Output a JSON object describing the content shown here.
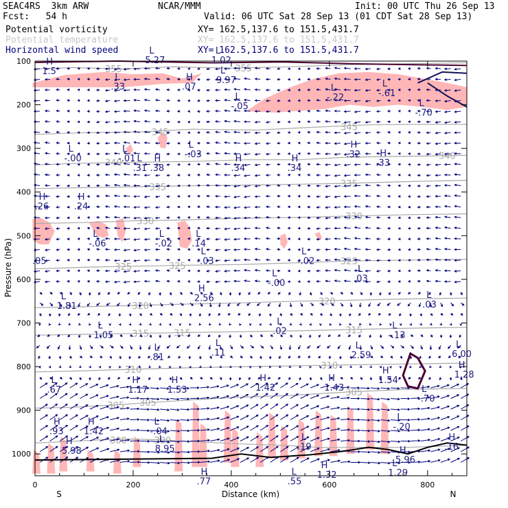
{
  "header": {
    "model": "SEAC4RS  3km ARW",
    "forecast": "Fcst:   54 h",
    "center": "NCAR/MMM",
    "init": "Init: 00 UTC Thu 26 Sep 13",
    "valid": "Valid: 06 UTC Sat 28 Sep 13 (01 CDT Sat 28 Sep 13)"
  },
  "legend": [
    {
      "label": "Potential vorticity",
      "xy": "XY= 162.5,137.6 to 151.5,431.7",
      "color": "#000000"
    },
    {
      "label": "Potential temperature",
      "xy": "XY= 162.5,137.6 to 151.5,431.7",
      "color": "#c8c8c8"
    },
    {
      "label": "Horizontal wind speed",
      "xy": "XY= 162.5,137.6 to 151.5,431.7",
      "color": "#00007a"
    }
  ],
  "colors": {
    "pv_shade": "#ffb6b6",
    "theta": "#a8a8a8",
    "wind": "#00007a",
    "pv_line": "#4b0030",
    "hl_text": "#1a1a80"
  },
  "chart_data": {
    "type": "cross-section",
    "xlabel": "Distance (km)",
    "ylabel": "Pressure (hPa)",
    "xlim": [
      0,
      880
    ],
    "ylim": [
      1050,
      100
    ],
    "x_ticks": [
      0,
      200,
      400,
      600,
      800
    ],
    "y_ticks": [
      100,
      200,
      300,
      400,
      500,
      600,
      700,
      800,
      900,
      1000
    ],
    "x_end_labels": {
      "left": "S",
      "right": "N"
    },
    "theta_contours": [
      {
        "value": 355,
        "points": [
          [
            0,
            118
          ],
          [
            80,
            115
          ],
          [
            180,
            118
          ],
          [
            280,
            113
          ],
          [
            400,
            116
          ],
          [
            520,
            113
          ],
          [
            640,
            108
          ],
          [
            760,
            106
          ],
          [
            880,
            104
          ]
        ],
        "labels": [
          {
            "x": 160,
            "p": 117
          },
          {
            "x": 425,
            "p": 116
          }
        ]
      },
      {
        "value": 345,
        "points": [
          [
            0,
            268
          ],
          [
            100,
            264
          ],
          [
            220,
            262
          ],
          [
            320,
            256
          ],
          [
            450,
            258
          ],
          [
            560,
            252
          ],
          [
            680,
            246
          ],
          [
            780,
            245
          ],
          [
            880,
            245
          ]
        ],
        "labels": [
          {
            "x": 255,
            "p": 262
          },
          {
            "x": 640,
            "p": 250
          }
        ]
      },
      {
        "value": 340,
        "points": [
          [
            0,
            338
          ],
          [
            90,
            334
          ],
          [
            200,
            332
          ],
          [
            320,
            330
          ],
          [
            430,
            326
          ],
          [
            540,
            326
          ],
          [
            640,
            320
          ],
          [
            760,
            318
          ],
          [
            880,
            316
          ]
        ],
        "labels": [
          {
            "x": 160,
            "p": 332
          },
          {
            "x": 840,
            "p": 316
          }
        ]
      },
      {
        "value": 335,
        "points": [
          [
            0,
            392
          ],
          [
            100,
            390
          ],
          [
            200,
            388
          ],
          [
            300,
            386
          ],
          [
            420,
            384
          ],
          [
            540,
            382
          ],
          [
            640,
            380
          ],
          [
            760,
            376
          ],
          [
            880,
            373
          ]
        ],
        "labels": [
          {
            "x": 250,
            "p": 388
          },
          {
            "x": 640,
            "p": 380
          }
        ]
      },
      {
        "value": 330,
        "points": [
          [
            0,
            472
          ],
          [
            100,
            470
          ],
          [
            200,
            466
          ],
          [
            300,
            464
          ],
          [
            420,
            460
          ],
          [
            540,
            458
          ],
          [
            640,
            455
          ],
          [
            760,
            452
          ],
          [
            880,
            450
          ]
        ],
        "labels": [
          {
            "x": 225,
            "p": 466
          },
          {
            "x": 650,
            "p": 455
          }
        ]
      },
      {
        "value": 325,
        "points": [
          [
            0,
            576
          ],
          [
            110,
            572
          ],
          [
            200,
            570
          ],
          [
            300,
            568
          ],
          [
            420,
            566
          ],
          [
            540,
            562
          ],
          [
            640,
            558
          ],
          [
            760,
            556
          ],
          [
            880,
            554
          ]
        ],
        "labels": [
          {
            "x": 180,
            "p": 570
          },
          {
            "x": 290,
            "p": 569
          },
          {
            "x": 640,
            "p": 558
          }
        ]
      },
      {
        "value": 320,
        "points": [
          [
            0,
            665
          ],
          [
            100,
            663
          ],
          [
            200,
            660
          ],
          [
            300,
            657
          ],
          [
            420,
            654
          ],
          [
            540,
            650
          ],
          [
            640,
            648
          ],
          [
            760,
            645
          ],
          [
            880,
            643
          ]
        ],
        "labels": [
          {
            "x": 215,
            "p": 660
          },
          {
            "x": 595,
            "p": 650
          }
        ]
      },
      {
        "value": 315,
        "points": [
          [
            0,
            728
          ],
          [
            100,
            726
          ],
          [
            200,
            724
          ],
          [
            300,
            722
          ],
          [
            420,
            720
          ],
          [
            540,
            718
          ],
          [
            640,
            715
          ],
          [
            760,
            712
          ],
          [
            880,
            710
          ]
        ],
        "labels": [
          {
            "x": 215,
            "p": 724
          },
          {
            "x": 300,
            "p": 722
          },
          {
            "x": 650,
            "p": 716
          }
        ]
      },
      {
        "value": 310,
        "points": [
          [
            0,
            812
          ],
          [
            90,
            810
          ],
          [
            200,
            806
          ],
          [
            300,
            803
          ],
          [
            420,
            800
          ],
          [
            540,
            798
          ],
          [
            640,
            796
          ],
          [
            760,
            794
          ],
          [
            880,
            792
          ]
        ],
        "labels": [
          {
            "x": 200,
            "p": 806
          },
          {
            "x": 600,
            "p": 797
          }
        ]
      },
      {
        "value": 305,
        "points": [
          [
            0,
            895
          ],
          [
            80,
            893
          ],
          [
            160,
            888
          ],
          [
            240,
            882
          ],
          [
            320,
            876
          ],
          [
            420,
            870
          ],
          [
            520,
            866
          ],
          [
            640,
            858
          ],
          [
            760,
            852
          ],
          [
            880,
            850
          ]
        ],
        "labels": [
          {
            "x": 165,
            "p": 888
          },
          {
            "x": 230,
            "p": 882
          },
          {
            "x": 650,
            "p": 858
          }
        ]
      },
      {
        "value": 300,
        "points": [
          [
            0,
            975
          ],
          [
            60,
            972
          ],
          [
            130,
            968
          ],
          [
            200,
            966
          ],
          [
            260,
            968
          ],
          [
            320,
            972
          ],
          [
            380,
            975
          ],
          [
            440,
            978
          ],
          [
            500,
            980
          ],
          [
            580,
            985
          ],
          [
            660,
            985
          ],
          [
            760,
            985
          ],
          [
            880,
            980
          ]
        ],
        "labels": [
          {
            "x": 170,
            "p": 968
          },
          {
            "x": 260,
            "p": 968
          }
        ]
      }
    ],
    "hl_labels": [
      {
        "t": "H",
        "v": "1.5",
        "x": 20,
        "p": 130
      },
      {
        "t": "L",
        "v": ".33",
        "x": 160,
        "p": 165
      },
      {
        "t": "L",
        "v": "5.27",
        "x": 230,
        "p": 105
      },
      {
        "t": "L",
        "v": "1.02",
        "x": 365,
        "p": 105
      },
      {
        "t": "L",
        "v": "9.97",
        "x": 375,
        "p": 150
      },
      {
        "t": "H",
        "v": ".07",
        "x": 305,
        "p": 165
      },
      {
        "t": "L",
        "v": "-.05",
        "x": 405,
        "p": 210
      },
      {
        "t": "L",
        "v": "-.22",
        "x": 600,
        "p": 190
      },
      {
        "t": "L",
        "v": "-.61",
        "x": 705,
        "p": 180
      },
      {
        "t": "L",
        "v": "-.70",
        "x": 780,
        "p": 225
      },
      {
        "t": "L",
        "v": "-.00",
        "x": 65,
        "p": 330
      },
      {
        "t": "L",
        "v": "-.01",
        "x": 175,
        "p": 330
      },
      {
        "t": "L",
        "v": ".31",
        "x": 205,
        "p": 352
      },
      {
        "t": "H",
        "v": ".38",
        "x": 240,
        "p": 352
      },
      {
        "t": "L",
        "v": "-.03",
        "x": 310,
        "p": 320
      },
      {
        "t": "H",
        "v": ".34",
        "x": 405,
        "p": 352
      },
      {
        "t": "H",
        "v": ".34",
        "x": 520,
        "p": 352
      },
      {
        "t": "H",
        "v": ".32",
        "x": 640,
        "p": 320
      },
      {
        "t": "H",
        "v": ".33",
        "x": 700,
        "p": 340
      },
      {
        "t": "H",
        "v": ".26",
        "x": 5,
        "p": 440
      },
      {
        "t": "H",
        "v": ".24",
        "x": 85,
        "p": 440
      },
      {
        "t": "L",
        "v": "-.06",
        "x": 115,
        "p": 525
      },
      {
        "t": "L",
        "v": "-.02",
        "x": 250,
        "p": 525
      },
      {
        "t": "L",
        "v": ".14",
        "x": 325,
        "p": 525
      },
      {
        "t": "L",
        "v": "-.03",
        "x": 335,
        "p": 565
      },
      {
        "t": "L",
        "v": "-.02",
        "x": 540,
        "p": 565
      },
      {
        "t": "L",
        "v": "-.00",
        "x": 480,
        "p": 615
      },
      {
        "t": "L",
        "v": ".03",
        "x": 655,
        "p": 605
      },
      {
        "t": "L",
        "v": ".03",
        "x": 795,
        "p": 665
      },
      {
        "t": "",
        "v": ".05",
        "x": 0,
        "p": 565
      },
      {
        "t": "L",
        "v": "1.81",
        "x": 50,
        "p": 668
      },
      {
        "t": "H",
        "v": "2.56",
        "x": 330,
        "p": 650
      },
      {
        "t": "L",
        "v": "1.05",
        "x": 125,
        "p": 735
      },
      {
        "t": "L",
        "v": ".02",
        "x": 490,
        "p": 725
      },
      {
        "t": "L",
        "v": "2.59",
        "x": 650,
        "p": 780
      },
      {
        "t": "L",
        "v": "-.13",
        "x": 725,
        "p": 735
      },
      {
        "t": "L",
        "v": ".81",
        "x": 240,
        "p": 785
      },
      {
        "t": "L",
        "v": ".11",
        "x": 365,
        "p": 775
      },
      {
        "t": "L",
        "v": "6.00",
        "x": 855,
        "p": 778
      },
      {
        "t": "H",
        "v": "1.28",
        "x": 860,
        "p": 825
      },
      {
        "t": "L",
        "v": ".67",
        "x": 30,
        "p": 860
      },
      {
        "t": "H",
        "v": "1.17",
        "x": 195,
        "p": 860
      },
      {
        "t": "H",
        "v": "1.53",
        "x": 275,
        "p": 860
      },
      {
        "t": "H",
        "v": "1.42",
        "x": 455,
        "p": 855
      },
      {
        "t": "H",
        "v": "1.43",
        "x": 595,
        "p": 855
      },
      {
        "t": "H",
        "v": "1.54",
        "x": 705,
        "p": 838
      },
      {
        "t": "L",
        "v": "-.70",
        "x": 785,
        "p": 880
      },
      {
        "t": "H",
        "v": ".93",
        "x": 35,
        "p": 955
      },
      {
        "t": "H",
        "v": "1.42",
        "x": 105,
        "p": 955
      },
      {
        "t": "H",
        "v": "5.98",
        "x": 60,
        "p": 1000
      },
      {
        "t": "L",
        "v": "-.04",
        "x": 240,
        "p": 955
      },
      {
        "t": "L",
        "v": "8.95",
        "x": 250,
        "p": 995
      },
      {
        "t": "L",
        "v": ".19",
        "x": 540,
        "p": 990
      },
      {
        "t": "L",
        "v": "-.20",
        "x": 735,
        "p": 945
      },
      {
        "t": "H",
        "v": "5.96",
        "x": 740,
        "p": 1020
      },
      {
        "t": "H",
        "v": ".16",
        "x": 840,
        "p": 990
      },
      {
        "t": "L",
        "v": "1.29",
        "x": 725,
        "p": 1050
      },
      {
        "t": "H",
        "v": ".77",
        "x": 335,
        "p": 1070
      },
      {
        "t": "L",
        "v": ".55",
        "x": 520,
        "p": 1070
      },
      {
        "t": "H",
        "v": "1.32",
        "x": 580,
        "p": 1055
      }
    ]
  }
}
